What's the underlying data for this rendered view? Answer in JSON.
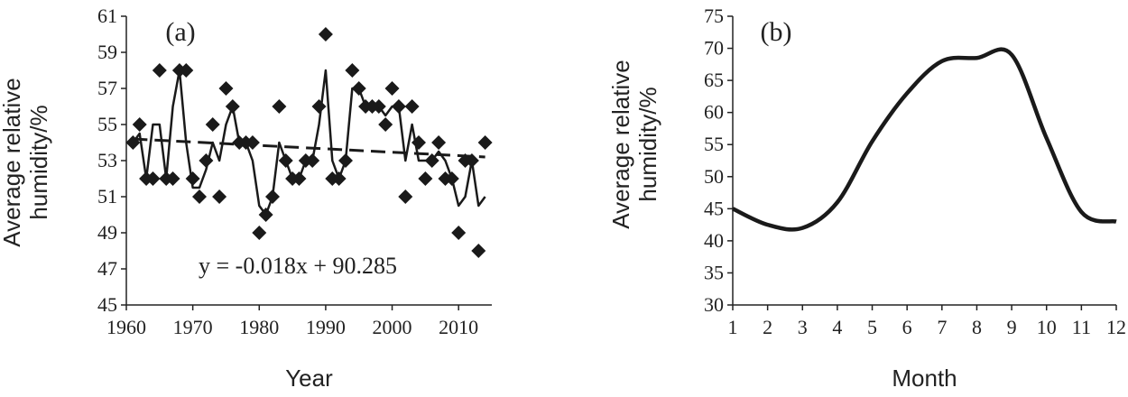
{
  "chart_data": [
    {
      "type": "scatter",
      "label": "(a)",
      "ylabel": [
        "Average relative",
        "humidity/%"
      ],
      "xlabel": "Year",
      "annotation": "y = -0.018x + 90.285",
      "xlim": [
        1960,
        2015
      ],
      "xticks": [
        1960,
        1970,
        1980,
        1990,
        2000,
        2010
      ],
      "ylim": [
        45,
        61
      ],
      "yticks": [
        45,
        47,
        49,
        51,
        53,
        55,
        57,
        59,
        61
      ],
      "x": [
        1961,
        1962,
        1963,
        1964,
        1965,
        1966,
        1967,
        1968,
        1969,
        1970,
        1971,
        1972,
        1973,
        1974,
        1975,
        1976,
        1977,
        1978,
        1979,
        1980,
        1981,
        1982,
        1983,
        1984,
        1985,
        1986,
        1987,
        1988,
        1989,
        1990,
        1991,
        1992,
        1993,
        1994,
        1995,
        1996,
        1997,
        1998,
        1999,
        2000,
        2001,
        2002,
        2003,
        2004,
        2005,
        2006,
        2007,
        2008,
        2009,
        2010,
        2011,
        2012,
        2013,
        2014
      ],
      "series": [
        {
          "type": "scatter",
          "color": "#1a1a1a",
          "values": [
            54,
            55,
            52,
            52,
            58,
            52,
            52,
            58,
            58,
            52,
            51,
            53,
            55,
            51,
            57,
            56,
            54,
            54,
            54,
            49,
            50,
            51,
            56,
            53,
            52,
            52,
            53,
            53,
            56,
            60,
            52,
            52,
            53,
            58,
            57,
            56,
            56,
            56,
            55,
            57,
            56,
            51,
            56,
            54,
            52,
            53,
            54,
            52,
            52,
            49,
            53,
            53,
            48,
            54
          ]
        },
        {
          "type": "line",
          "color": "#1a1a1a",
          "values": [
            54,
            54.5,
            52,
            55,
            55,
            52,
            56,
            58,
            54,
            51.5,
            51.5,
            52.5,
            54,
            53,
            55,
            56,
            54,
            54,
            53,
            50.5,
            50,
            51,
            54,
            53,
            52,
            52,
            53,
            53,
            55,
            58,
            53,
            52,
            53,
            57,
            57,
            56,
            56,
            56,
            55.5,
            56,
            56,
            53,
            55,
            53,
            53,
            53,
            53.5,
            53,
            52,
            50.5,
            51,
            53,
            50.5,
            51
          ]
        },
        {
          "type": "line",
          "dashed": true,
          "color": "#1a1a1a",
          "x": [
            1961,
            2014
          ],
          "values": [
            54.2,
            53.2
          ]
        }
      ]
    },
    {
      "type": "line",
      "label": "(b)",
      "ylabel": [
        "Average relative",
        "humidity/%"
      ],
      "xlabel": "Month",
      "xlim": [
        1,
        12
      ],
      "xticks": [
        1,
        2,
        3,
        4,
        5,
        6,
        7,
        8,
        9,
        10,
        11,
        12
      ],
      "ylim": [
        30,
        75
      ],
      "yticks": [
        30,
        35,
        40,
        45,
        50,
        55,
        60,
        65,
        70,
        75
      ],
      "x": [
        1,
        2,
        3,
        4,
        5,
        6,
        7,
        8,
        9,
        10,
        11,
        12
      ],
      "series": [
        {
          "type": "line",
          "smooth": true,
          "color": "#1a1a1a",
          "values": [
            45,
            42.5,
            42,
            46,
            55.5,
            63,
            68,
            68.5,
            69,
            56,
            44.5,
            43
          ]
        }
      ]
    }
  ]
}
